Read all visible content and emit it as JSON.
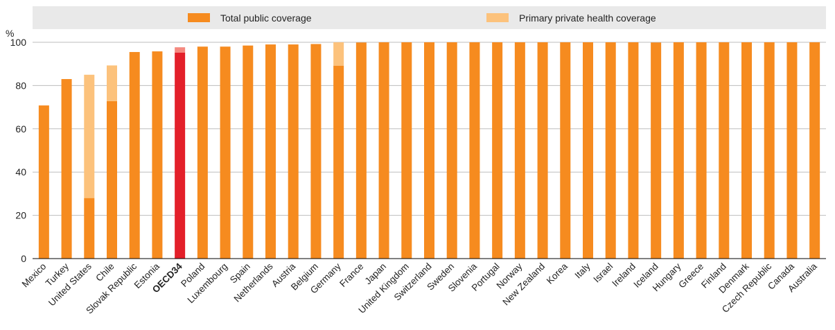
{
  "chart_data": {
    "type": "bar",
    "stacked": true,
    "ylabel": "%",
    "ylim": [
      0,
      100
    ],
    "yticks": [
      0,
      20,
      40,
      60,
      80,
      100
    ],
    "grid": "horizontal",
    "legend_position": "top",
    "categories": [
      "Mexico",
      "Turkey",
      "United States",
      "Chile",
      "Slovak Republic",
      "Estonia",
      "OECD34",
      "Poland",
      "Luxembourg",
      "Spain",
      "Netherlands",
      "Austria",
      "Belgium",
      "Germany",
      "France",
      "Japan",
      "United Kingdom",
      "Switzerland",
      "Sweden",
      "Slovenia",
      "Portugal",
      "Norway",
      "New Zealand",
      "Korea",
      "Italy",
      "Israel",
      "Ireland",
      "Iceland",
      "Hungary",
      "Greece",
      "Finland",
      "Denmark",
      "Czech Republic",
      "Canada",
      "Australia"
    ],
    "highlight_category": "OECD34",
    "series": [
      {
        "name": "Total public coverage",
        "color": "#f68b1f",
        "highlight_color": "#e3202a",
        "values": [
          70.8,
          83,
          28,
          72.8,
          95.5,
          95.8,
          95.2,
          98,
          98,
          98.5,
          99,
          99,
          99.2,
          89.2,
          99.9,
          100,
          100,
          100,
          100,
          100,
          100,
          100,
          100,
          100,
          100,
          100,
          100,
          99.9,
          100,
          100,
          100,
          100,
          100,
          100,
          100
        ]
      },
      {
        "name": "Primary private health coverage",
        "color": "#fcc27c",
        "highlight_color": "#f58a80",
        "values": [
          0,
          0,
          57,
          16.5,
          0,
          0,
          2.5,
          0,
          0,
          0,
          0,
          0,
          0,
          10.8,
          0,
          0,
          0,
          0,
          0,
          0,
          0,
          0,
          0,
          0,
          0,
          0,
          0,
          0,
          0,
          0,
          0,
          0,
          0,
          0,
          0
        ]
      }
    ]
  }
}
